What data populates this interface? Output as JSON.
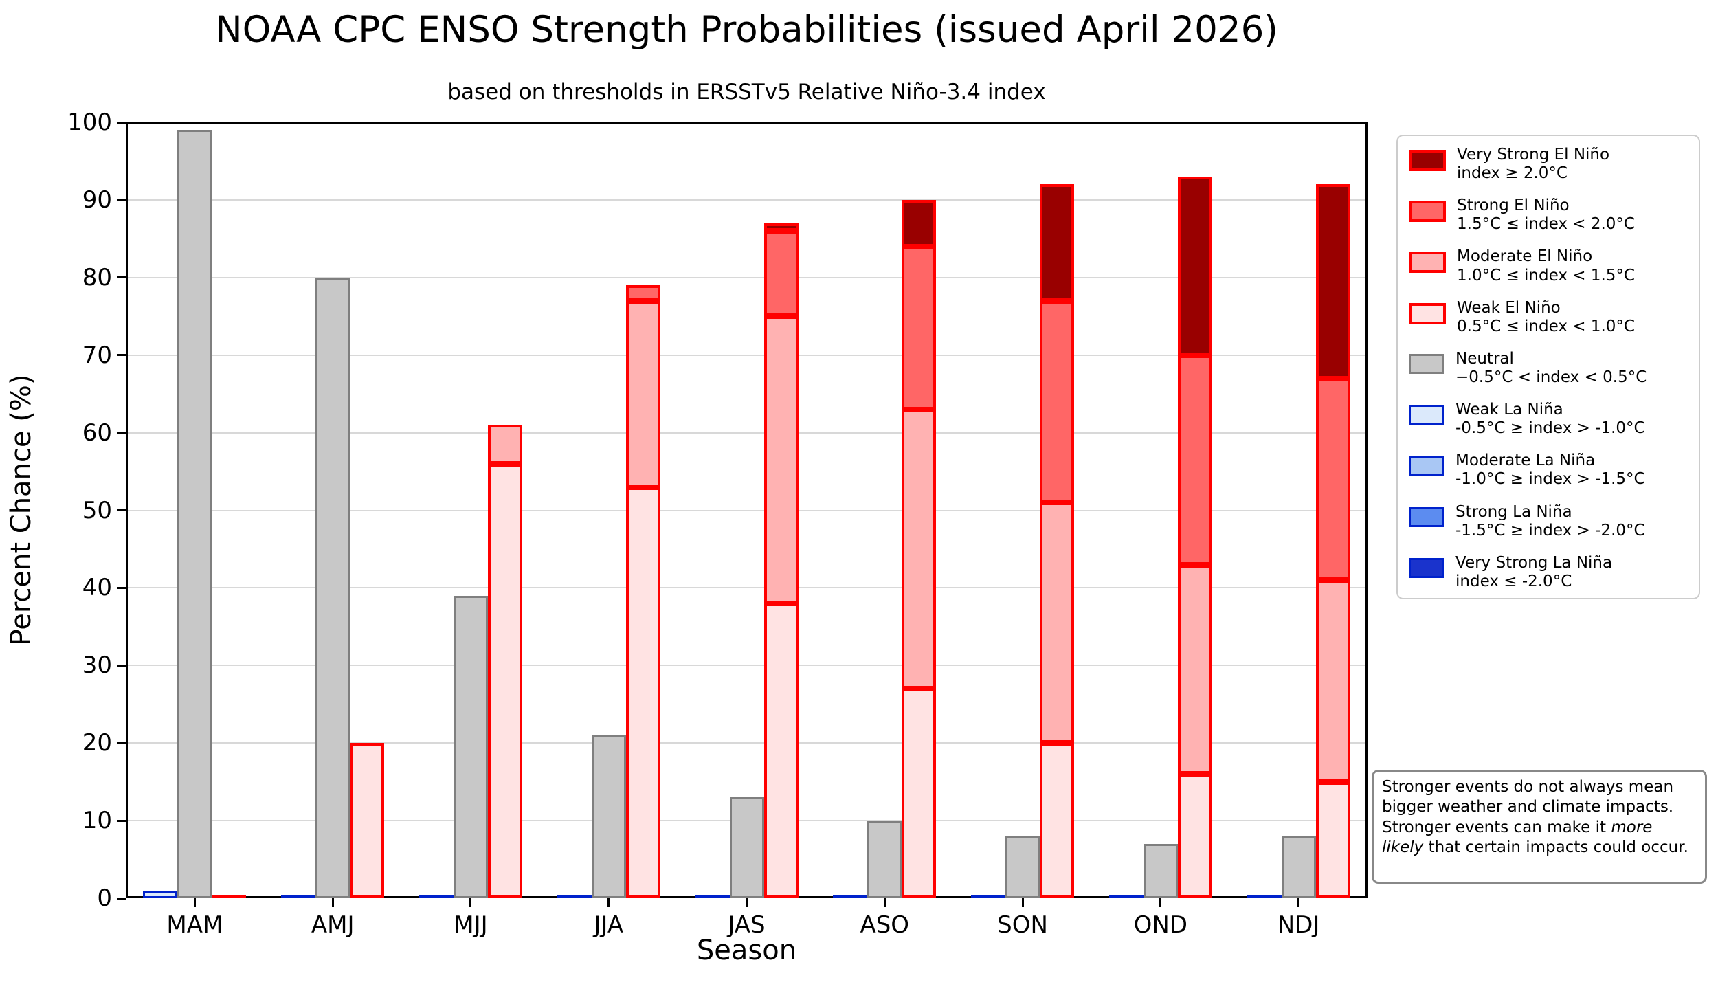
{
  "title": "NOAA CPC ENSO Strength Probabilities (issued April 2026)",
  "subtitle": "based on thresholds in ERSSTv5 Relative Niño-3.4 index",
  "axes": {
    "x_label": "Season",
    "y_label": "Percent Chance (%)",
    "y_ticks": [
      0,
      10,
      20,
      30,
      40,
      50,
      60,
      70,
      80,
      90,
      100
    ],
    "ylim": [
      0,
      100
    ]
  },
  "colors": {
    "el_nino_edge": "#ff0000",
    "la_nina_edge": "#0022cc",
    "neutral_edge": "#7f7f7f",
    "gridline": "#d8d8d8"
  },
  "chart_data": {
    "type": "bar",
    "stacked_groups": [
      "la_nina",
      "neutral",
      "el_nino"
    ],
    "categories": [
      "MAM",
      "AMJ",
      "MJJ",
      "JJA",
      "JAS",
      "ASO",
      "SON",
      "OND",
      "NDJ"
    ],
    "series": [
      {
        "name": "Weak La Niña",
        "group": "la_nina",
        "fill": "#dbe9fb",
        "edge": "#0022cc",
        "values": [
          1,
          0,
          0,
          0,
          0,
          0,
          0,
          0,
          0
        ]
      },
      {
        "name": "Moderate La Niña",
        "group": "la_nina",
        "fill": "#a9c7f4",
        "edge": "#0022cc",
        "values": [
          0,
          0,
          0,
          0,
          0,
          0,
          0,
          0,
          0
        ]
      },
      {
        "name": "Strong La Niña",
        "group": "la_nina",
        "fill": "#5c8cf0",
        "edge": "#0022cc",
        "values": [
          0,
          0,
          0,
          0,
          0,
          0,
          0,
          0,
          0
        ]
      },
      {
        "name": "Very Strong La Niña",
        "group": "la_nina",
        "fill": "#1a33cc",
        "edge": "#0022cc",
        "values": [
          0,
          0,
          0,
          0,
          0,
          0,
          0,
          0,
          0
        ]
      },
      {
        "name": "Neutral",
        "group": "neutral",
        "fill": "#c8c8c8",
        "edge": "#7f7f7f",
        "values": [
          99,
          80,
          39,
          21,
          13,
          10,
          8,
          7,
          8
        ]
      },
      {
        "name": "Weak El Niño",
        "group": "el_nino",
        "fill": "#ffe3e3",
        "edge": "#ff0000",
        "values": [
          0,
          20,
          56,
          53,
          38,
          27,
          20,
          16,
          15
        ]
      },
      {
        "name": "Moderate El Niño",
        "group": "el_nino",
        "fill": "#ffb2b2",
        "edge": "#ff0000",
        "values": [
          0,
          0,
          5,
          24,
          37,
          36,
          31,
          27,
          26
        ]
      },
      {
        "name": "Strong El Niño",
        "group": "el_nino",
        "fill": "#ff6666",
        "edge": "#ff0000",
        "values": [
          0,
          0,
          0,
          2,
          11,
          21,
          26,
          27,
          26
        ]
      },
      {
        "name": "Very Strong El Niño",
        "group": "el_nino",
        "fill": "#990000",
        "edge": "#ff0000",
        "values": [
          0,
          0,
          0,
          0,
          1,
          6,
          15,
          23,
          25
        ]
      }
    ],
    "title": "NOAA CPC ENSO Strength Probabilities (issued April 2026)",
    "xlabel": "Season",
    "ylabel": "Percent Chance (%)",
    "ylim": [
      0,
      100
    ],
    "grid": true,
    "legend_position": "outside-right"
  },
  "legend": {
    "items": [
      {
        "line1": "Very Strong El Niño",
        "line2": "index ≥ 2.0°C",
        "fill": "#990000",
        "edge": "#ff0000"
      },
      {
        "line1": "Strong El Niño",
        "line2": "1.5°C ≤ index < 2.0°C",
        "fill": "#ff6666",
        "edge": "#ff0000"
      },
      {
        "line1": "Moderate El Niño",
        "line2": "1.0°C ≤ index < 1.5°C",
        "fill": "#ffb2b2",
        "edge": "#ff0000"
      },
      {
        "line1": "Weak El Niño",
        "line2": "0.5°C ≤ index < 1.0°C",
        "fill": "#ffe3e3",
        "edge": "#ff0000"
      },
      {
        "line1": "Neutral",
        "line2": "−0.5°C < index < 0.5°C",
        "fill": "#c8c8c8",
        "edge": "#7f7f7f"
      },
      {
        "line1": "Weak La Niña",
        "line2": "-0.5°C ≥ index > -1.0°C",
        "fill": "#dbe9fb",
        "edge": "#0022cc"
      },
      {
        "line1": "Moderate La Niña",
        "line2": "-1.0°C ≥ index > -1.5°C",
        "fill": "#a9c7f4",
        "edge": "#0022cc"
      },
      {
        "line1": "Strong La Niña",
        "line2": "-1.5°C ≥ index > -2.0°C",
        "fill": "#5c8cf0",
        "edge": "#0022cc"
      },
      {
        "line1": "Very Strong La Niña",
        "line2": "index ≤ -2.0°C",
        "fill": "#1a33cc",
        "edge": "#0022cc"
      }
    ]
  },
  "note": {
    "pre": "Stronger events do not always mean bigger weather and climate impacts. Stronger events can make it ",
    "italic": "more likely",
    "post": " that certain impacts could occur."
  }
}
